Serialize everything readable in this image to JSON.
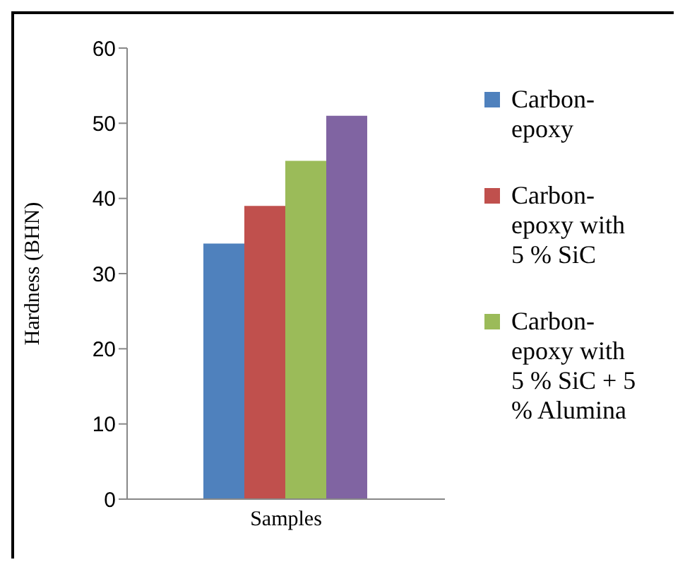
{
  "chart_data": {
    "type": "bar",
    "ylabel": "Hardness (BHN)",
    "categories": [
      "Samples"
    ],
    "series": [
      {
        "name": "Carbon-epoxy",
        "color": "#4f81bd",
        "values": [
          34
        ]
      },
      {
        "name": "Carbon-epoxy with 5 % SiC",
        "color": "#c0504d",
        "values": [
          39
        ]
      },
      {
        "name": "Carbon-epoxy with 5 % SiC + 5 % Alumina",
        "color": "#9bbb59",
        "values": [
          45
        ]
      },
      {
        "color": "#8064a2",
        "values": [
          51
        ]
      }
    ],
    "ylim": [
      0,
      60
    ],
    "yticks": [
      0,
      10,
      20,
      30,
      40,
      50,
      60
    ],
    "grid": false,
    "legend": "right"
  }
}
